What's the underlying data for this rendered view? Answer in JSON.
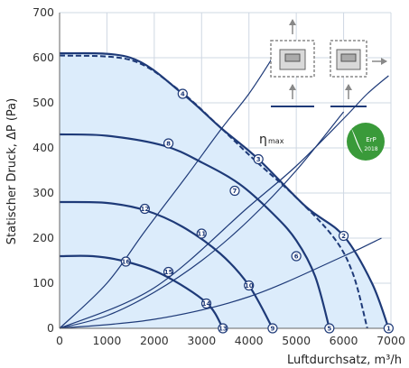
{
  "chart_data": {
    "type": "line",
    "xlabel": "Luftdurchsatz, m³/h",
    "ylabel": "Statischer Druck, ΔP (Pa)",
    "xlim": [
      0,
      7000
    ],
    "ylim": [
      0,
      700
    ],
    "xticks": [
      0,
      1000,
      2000,
      3000,
      4000,
      5000,
      6000,
      7000
    ],
    "yticks": [
      0,
      100,
      200,
      300,
      400,
      500,
      600,
      700
    ],
    "grid": true,
    "eta_label": "η",
    "eta_sub": "max",
    "badge": {
      "text": "ErP",
      "year": "2018",
      "color": "#3a9a3a"
    },
    "colors": {
      "curve": "#1e3a78",
      "fill": "#dcecfb",
      "grid": "#cfd8e3"
    },
    "fan_curves": [
      {
        "points": [
          [
            0,
            610
          ],
          [
            1500,
            600
          ],
          [
            2600,
            520
          ],
          [
            3400,
            445
          ],
          [
            4200,
            375
          ],
          [
            5200,
            270
          ],
          [
            6000,
            205
          ],
          [
            6600,
            100
          ],
          [
            6950,
            0
          ]
        ]
      },
      {
        "points": [
          [
            0,
            430
          ],
          [
            1000,
            427
          ],
          [
            2200,
            405
          ],
          [
            3000,
            368
          ],
          [
            3800,
            320
          ],
          [
            4500,
            255
          ],
          [
            5000,
            195
          ],
          [
            5400,
            115
          ],
          [
            5700,
            0
          ]
        ]
      },
      {
        "points": [
          [
            0,
            280
          ],
          [
            1000,
            278
          ],
          [
            1800,
            262
          ],
          [
            2600,
            225
          ],
          [
            3400,
            165
          ],
          [
            4000,
            95
          ],
          [
            4500,
            0
          ]
        ]
      },
      {
        "points": [
          [
            0,
            160
          ],
          [
            700,
            160
          ],
          [
            1400,
            148
          ],
          [
            2200,
            118
          ],
          [
            3100,
            57
          ],
          [
            3450,
            0
          ]
        ]
      }
    ],
    "eta_max_line": {
      "points": [
        [
          0,
          605
        ],
        [
          1500,
          595
        ],
        [
          2500,
          530
        ],
        [
          3300,
          455
        ],
        [
          4100,
          375
        ],
        [
          5000,
          290
        ],
        [
          5800,
          200
        ],
        [
          6200,
          120
        ],
        [
          6500,
          0
        ]
      ]
    },
    "system_curves": [
      {
        "points": [
          [
            0,
            0
          ],
          [
            2000,
            90
          ],
          [
            4000,
            270
          ],
          [
            5000,
            360
          ],
          [
            6000,
            465
          ],
          [
            6500,
            520
          ],
          [
            6950,
            560
          ]
        ]
      },
      {
        "points": [
          [
            0,
            0
          ],
          [
            1000,
            100
          ],
          [
            1800,
            215
          ],
          [
            2700,
            340
          ],
          [
            3400,
            440
          ],
          [
            4000,
            520
          ],
          [
            4500,
            600
          ]
        ]
      },
      {
        "points": [
          [
            0,
            0
          ],
          [
            1000,
            28
          ],
          [
            2000,
            80
          ],
          [
            3000,
            150
          ],
          [
            4000,
            240
          ],
          [
            5000,
            350
          ],
          [
            6000,
            480
          ]
        ]
      },
      {
        "points": [
          [
            0,
            0
          ],
          [
            2000,
            20
          ],
          [
            4000,
            70
          ],
          [
            6000,
            160
          ],
          [
            6800,
            200
          ]
        ]
      }
    ],
    "operating_points": [
      {
        "id": "1",
        "x": 6950,
        "y": 0
      },
      {
        "id": "2",
        "x": 6000,
        "y": 205
      },
      {
        "id": "3",
        "x": 4200,
        "y": 375
      },
      {
        "id": "4",
        "x": 2600,
        "y": 520
      },
      {
        "id": "5",
        "x": 5700,
        "y": 0
      },
      {
        "id": "6",
        "x": 5000,
        "y": 160
      },
      {
        "id": "7",
        "x": 3700,
        "y": 305
      },
      {
        "id": "8",
        "x": 2300,
        "y": 410
      },
      {
        "id": "9",
        "x": 4500,
        "y": 0
      },
      {
        "id": "10",
        "x": 4000,
        "y": 95
      },
      {
        "id": "11",
        "x": 3000,
        "y": 210
      },
      {
        "id": "12",
        "x": 1800,
        "y": 265
      },
      {
        "id": "13",
        "x": 3450,
        "y": 0
      },
      {
        "id": "14",
        "x": 3100,
        "y": 55
      },
      {
        "id": "15",
        "x": 2300,
        "y": 125
      },
      {
        "id": "16",
        "x": 1400,
        "y": 148
      }
    ]
  }
}
